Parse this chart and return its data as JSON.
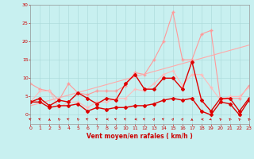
{
  "xlabel": "Vent moyen/en rafales ( km/h )",
  "xlim": [
    0,
    23
  ],
  "ylim": [
    0,
    30
  ],
  "xticks": [
    0,
    1,
    2,
    3,
    4,
    5,
    6,
    7,
    8,
    9,
    10,
    11,
    12,
    13,
    14,
    15,
    16,
    17,
    18,
    19,
    20,
    21,
    22,
    23
  ],
  "yticks": [
    0,
    5,
    10,
    15,
    20,
    25,
    30
  ],
  "bg_color": "#c8f0f0",
  "grid_color": "#a8d8d8",
  "series": [
    {
      "name": "gust_light",
      "color": "#ff9999",
      "lw": 0.8,
      "marker": "+",
      "ms": 3,
      "data_x": [
        0,
        1,
        2,
        3,
        4,
        5,
        6,
        7,
        8,
        9,
        10,
        11,
        12,
        13,
        14,
        15,
        16,
        17,
        18,
        19,
        20,
        21,
        22,
        23
      ],
      "data_y": [
        8.5,
        7.0,
        6.5,
        4.0,
        8.5,
        6.0,
        5.5,
        6.5,
        6.5,
        6.5,
        8.0,
        11.5,
        11.0,
        15.0,
        20.0,
        28.0,
        15.0,
        15.0,
        22.0,
        23.0,
        4.0,
        4.5,
        4.5,
        8.0
      ]
    },
    {
      "name": "trend_line",
      "color": "#ffaaaa",
      "lw": 0.8,
      "marker": null,
      "ms": 0,
      "data_x": [
        0,
        23
      ],
      "data_y": [
        2.5,
        19.0
      ]
    },
    {
      "name": "mean_light",
      "color": "#ffbbbb",
      "lw": 0.8,
      "marker": "+",
      "ms": 3,
      "data_x": [
        0,
        1,
        2,
        3,
        4,
        5,
        6,
        7,
        8,
        9,
        10,
        11,
        12,
        13,
        14,
        15,
        16,
        17,
        18,
        19,
        20,
        21,
        22,
        23
      ],
      "data_y": [
        3.5,
        6.5,
        6.5,
        2.0,
        3.5,
        3.5,
        2.0,
        3.5,
        3.5,
        4.5,
        4.5,
        7.0,
        6.5,
        8.5,
        11.0,
        12.0,
        8.0,
        11.0,
        11.0,
        7.5,
        4.0,
        5.0,
        5.0,
        7.5
      ]
    },
    {
      "name": "gust_dark",
      "color": "#dd0000",
      "lw": 1.0,
      "marker": "D",
      "ms": 2,
      "data_x": [
        0,
        1,
        2,
        3,
        4,
        5,
        6,
        7,
        8,
        9,
        10,
        11,
        12,
        13,
        14,
        15,
        16,
        17,
        18,
        19,
        20,
        21,
        22,
        23
      ],
      "data_y": [
        3.5,
        4.5,
        2.5,
        4.0,
        3.5,
        6.0,
        4.5,
        3.0,
        4.5,
        4.0,
        8.5,
        11.0,
        7.0,
        7.0,
        10.0,
        10.0,
        7.0,
        14.5,
        4.0,
        1.0,
        4.5,
        4.5,
        1.0,
        4.5
      ]
    },
    {
      "name": "mean_dark",
      "color": "#dd0000",
      "lw": 1.0,
      "marker": "D",
      "ms": 2,
      "data_x": [
        0,
        1,
        2,
        3,
        4,
        5,
        6,
        7,
        8,
        9,
        10,
        11,
        12,
        13,
        14,
        15,
        16,
        17,
        18,
        19,
        20,
        21,
        22,
        23
      ],
      "data_y": [
        3.5,
        3.5,
        2.0,
        2.5,
        2.5,
        3.0,
        1.0,
        2.0,
        1.5,
        2.0,
        2.0,
        2.5,
        2.5,
        3.0,
        4.0,
        4.5,
        4.0,
        4.5,
        1.0,
        0.0,
        3.5,
        3.0,
        0.0,
        4.0
      ]
    }
  ],
  "wind_dirs": [
    225,
    225,
    180,
    200,
    225,
    200,
    225,
    225,
    270,
    225,
    225,
    270,
    225,
    160,
    225,
    160,
    160,
    180,
    260,
    315,
    200,
    200,
    200,
    200
  ]
}
